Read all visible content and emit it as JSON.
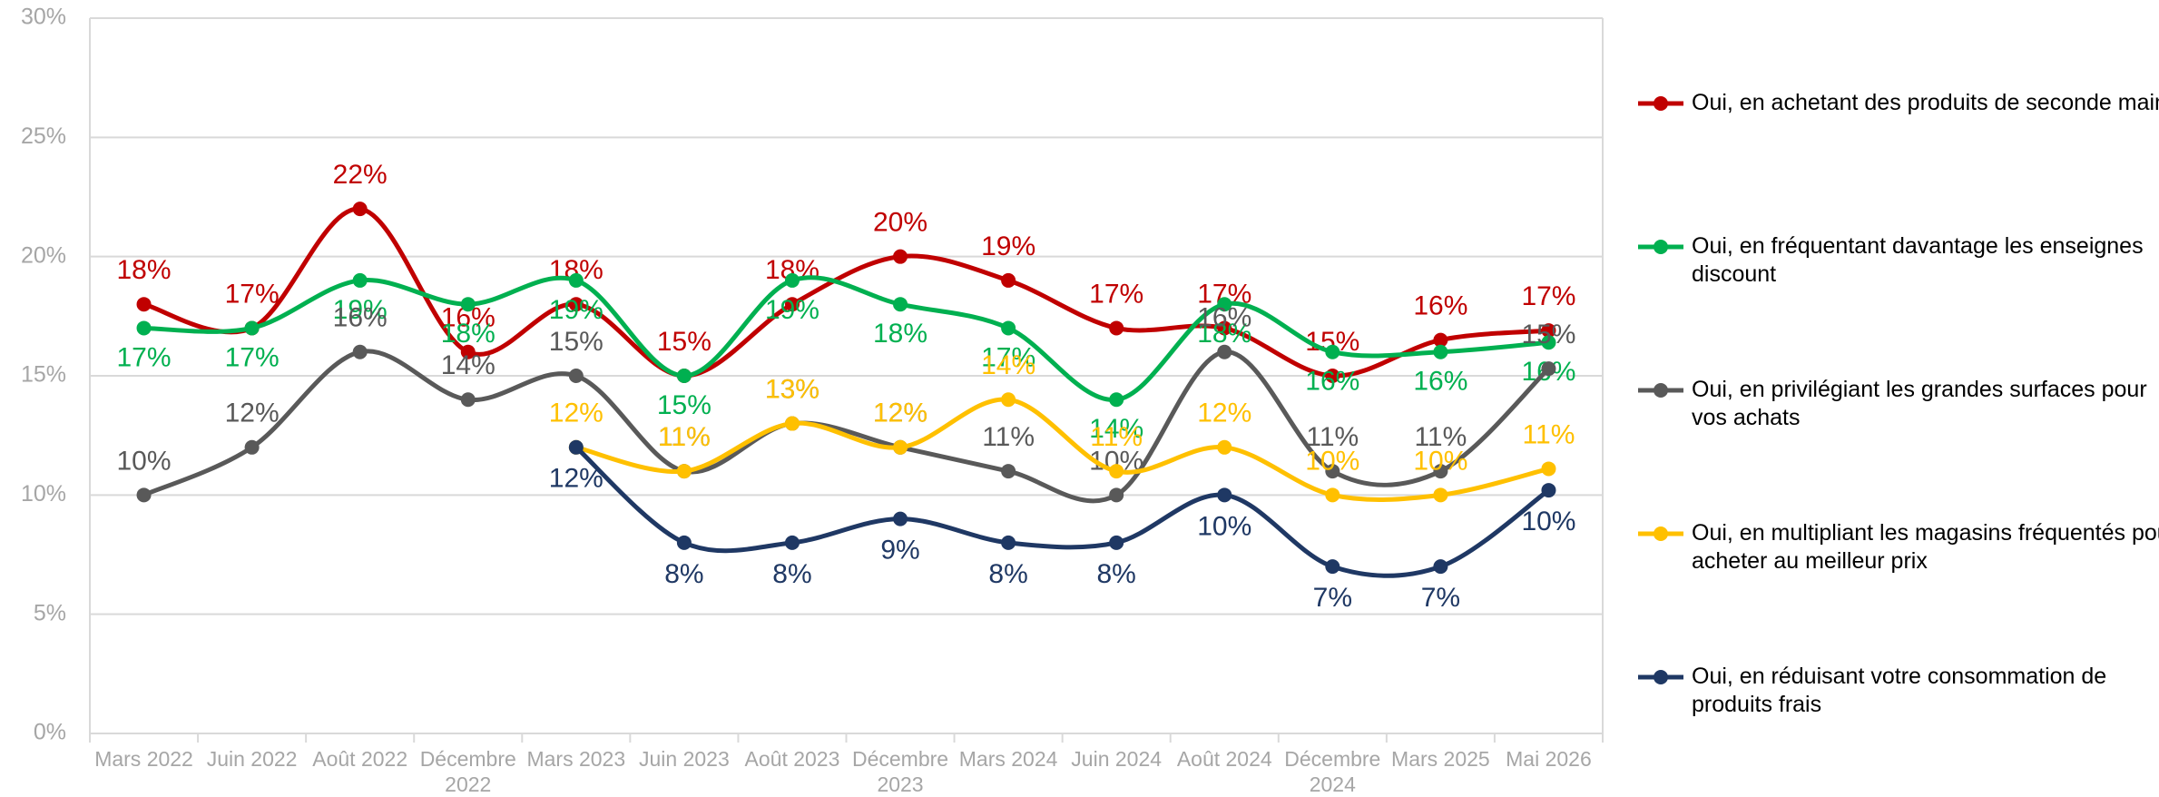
{
  "chart_data": {
    "type": "line",
    "categories": [
      "Mars 2022",
      "Juin 2022",
      "Août 2022",
      "Décembre 2022",
      "Mars 2023",
      "Juin 2023",
      "Août 2023",
      "Décembre 2023",
      "Mars 2024",
      "Juin 2024",
      "Août 2024",
      "Décembre 2024",
      "Mars 2025",
      "Mai 2026"
    ],
    "series": [
      {
        "name": "Oui, en achetant des produits de seconde main",
        "color": "#c00000",
        "values": [
          18,
          17,
          22,
          16,
          18,
          15,
          18,
          20,
          19,
          17,
          17,
          15,
          16.5,
          16.9
        ],
        "value_labels": [
          "18%",
          "17%",
          "22%",
          "16%",
          "18%",
          "15%",
          "18%",
          "20%",
          "19%",
          "17%",
          "17%",
          "15%",
          "16%",
          "17%"
        ]
      },
      {
        "name": "Oui, en fréquentant davantage les enseignes discount",
        "color": "#00b050",
        "values": [
          17,
          17,
          19,
          18,
          19,
          15,
          19,
          18,
          17,
          14,
          18,
          16,
          16,
          16.4
        ],
        "value_labels": [
          "17%",
          "17%",
          "19%",
          "18%",
          "19%",
          "15%",
          "19%",
          "18%",
          "17%",
          "14%",
          "18%",
          "16%",
          "16%",
          "16%"
        ]
      },
      {
        "name": "Oui, en privilégiant les grandes surfaces pour vos achats",
        "color": "#595959",
        "values": [
          10,
          12,
          16,
          14,
          15,
          11,
          13,
          12,
          11,
          10,
          16,
          11,
          11,
          15.3
        ],
        "value_labels": [
          "10%",
          "12%",
          "16%",
          "14%",
          "15%",
          "11%",
          "13%",
          "12%",
          "11%",
          "10%",
          "16%",
          "11%",
          "11%",
          "15%"
        ]
      },
      {
        "name": "Oui, en multipliant les magasins fréquentés pour acheter au meilleur prix",
        "color": "#ffc000",
        "values": [
          null,
          null,
          null,
          null,
          12,
          11,
          13,
          12,
          14,
          11,
          12,
          10,
          10,
          11.1
        ],
        "value_labels": [
          null,
          null,
          null,
          null,
          "12%",
          "11%",
          "13%",
          "12%",
          "14%",
          "11%",
          "12%",
          "10%",
          "10%",
          "11%"
        ]
      },
      {
        "name": "Oui, en réduisant votre consommation de produits frais",
        "color": "#1f3864",
        "values": [
          null,
          null,
          null,
          null,
          12,
          8,
          8,
          9,
          8,
          8,
          10,
          7,
          7,
          10.2
        ],
        "value_labels": [
          null,
          null,
          null,
          null,
          "12%",
          "8%",
          "8%",
          "9%",
          "8%",
          "8%",
          "10%",
          "7%",
          "7%",
          "10%"
        ]
      }
    ],
    "ylim": [
      0,
      30
    ],
    "yticks": [
      {
        "value": 0,
        "label": "0%"
      },
      {
        "value": 5,
        "label": "5%"
      },
      {
        "value": 10,
        "label": "10%"
      },
      {
        "value": 15,
        "label": "15%"
      },
      {
        "value": 20,
        "label": "20%"
      },
      {
        "value": 25,
        "label": "25%"
      },
      {
        "value": 30,
        "label": "30%"
      }
    ],
    "grid": true,
    "legend": "right"
  }
}
